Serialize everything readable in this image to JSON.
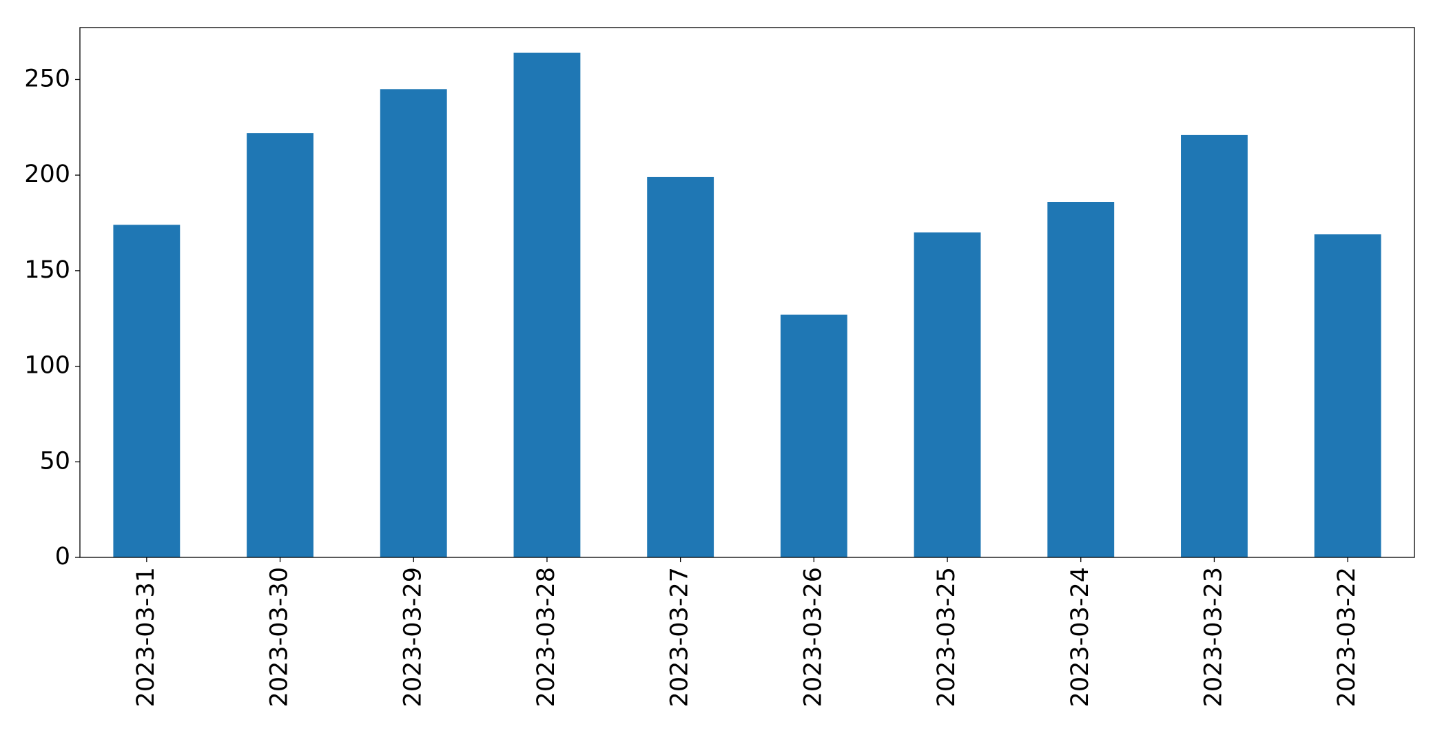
{
  "chart_data": {
    "type": "bar",
    "categories": [
      "2023-03-31",
      "2023-03-30",
      "2023-03-29",
      "2023-03-28",
      "2023-03-27",
      "2023-03-26",
      "2023-03-25",
      "2023-03-24",
      "2023-03-23",
      "2023-03-22"
    ],
    "values": [
      174,
      222,
      245,
      264,
      199,
      127,
      170,
      186,
      221,
      169
    ],
    "color": "#1f77b4",
    "ylim": [
      0,
      277.2
    ],
    "yticks": [
      0,
      50,
      100,
      150,
      200,
      250
    ],
    "grid": false
  }
}
